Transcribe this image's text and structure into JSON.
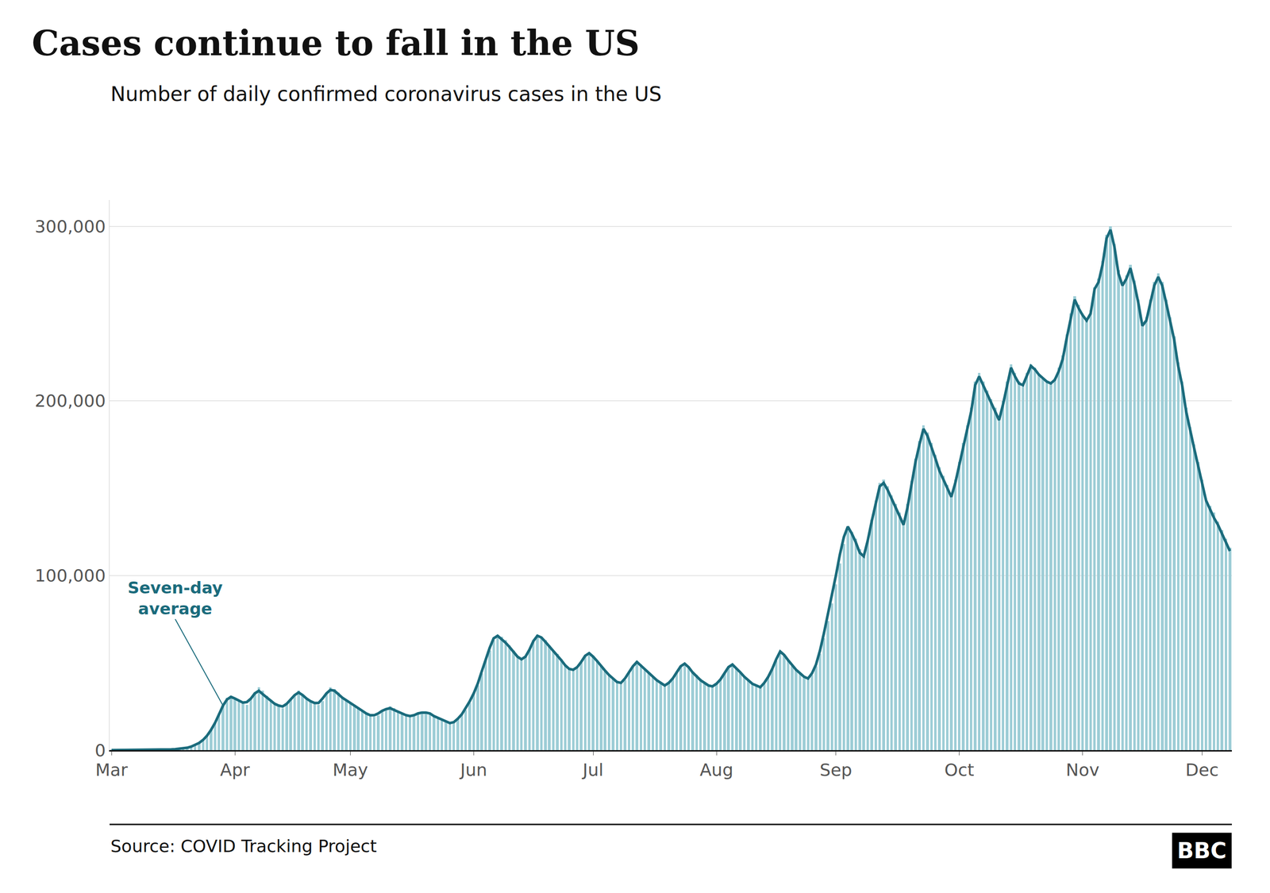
{
  "chart_data": {
    "type": "bar",
    "title": "Cases continue to fall in the US",
    "subtitle": "Number of daily confirmed coronavirus cases in the US",
    "source": "Source: COVID Tracking Project",
    "logo": "BBC",
    "annotations": [
      "Seven-day\naverage"
    ],
    "grid": true,
    "ylim": [
      0,
      315000
    ],
    "yticks": [
      0,
      {
        "value": 100000,
        "label": "100,000"
      },
      {
        "value": 200000,
        "label": "200,000"
      },
      {
        "value": 300000,
        "label": "300,000"
      }
    ],
    "categories": [
      "Mar",
      null,
      null,
      null,
      null,
      null,
      null,
      null,
      null,
      null,
      null,
      null,
      null,
      null,
      null,
      null,
      null,
      null,
      null,
      null,
      null,
      null,
      null,
      null,
      null,
      null,
      null,
      null,
      null,
      null,
      null,
      "Apr",
      null,
      null,
      null,
      null,
      null,
      null,
      null,
      null,
      null,
      null,
      null,
      null,
      null,
      null,
      null,
      null,
      null,
      null,
      null,
      null,
      null,
      null,
      null,
      null,
      null,
      null,
      null,
      null,
      "May",
      null,
      null,
      null,
      null,
      null,
      null,
      null,
      null,
      null,
      null,
      null,
      null,
      null,
      null,
      null,
      null,
      null,
      null,
      null,
      null,
      null,
      null,
      null,
      null,
      null,
      null,
      null,
      null,
      null,
      null,
      "Jun",
      null,
      null,
      null,
      null,
      null,
      null,
      null,
      null,
      null,
      null,
      null,
      null,
      null,
      null,
      null,
      null,
      null,
      null,
      null,
      null,
      null,
      null,
      null,
      null,
      null,
      null,
      null,
      null,
      null,
      "Jul",
      null,
      null,
      null,
      null,
      null,
      null,
      null,
      null,
      null,
      null,
      null,
      null,
      null,
      null,
      null,
      null,
      null,
      null,
      null,
      null,
      null,
      null,
      null,
      null,
      null,
      null,
      null,
      null,
      null,
      null,
      "Aug",
      null,
      null,
      null,
      null,
      null,
      null,
      null,
      null,
      null,
      null,
      null,
      null,
      null,
      null,
      null,
      null,
      null,
      null,
      null,
      null,
      null,
      null,
      null,
      null,
      null,
      null,
      null,
      null,
      null,
      "Sep",
      null,
      null,
      null,
      null,
      null,
      null,
      null,
      null,
      null,
      null,
      null,
      null,
      null,
      null,
      null,
      null,
      null,
      null,
      null,
      null,
      null,
      null,
      null,
      null,
      null,
      null,
      null,
      null,
      null,
      null,
      "Oct",
      null,
      null,
      null,
      null,
      null,
      null,
      null,
      null,
      null,
      null,
      null,
      null,
      null,
      null,
      null,
      null,
      null,
      null,
      null,
      null,
      null,
      null,
      null,
      null,
      null,
      null,
      null,
      null,
      null,
      null,
      "Nov",
      null,
      null,
      null,
      null,
      null,
      null,
      null,
      null,
      null,
      null,
      null,
      null,
      null,
      null,
      null,
      null,
      null,
      null,
      null,
      null,
      null,
      null,
      null,
      null,
      null,
      null,
      null,
      null,
      null,
      "Dec",
      null,
      null,
      null,
      null,
      null,
      null,
      null
    ],
    "series": [
      {
        "type": "bar",
        "color": "#9dcdd6",
        "values": [
          4,
          6,
          7,
          9,
          12,
          16,
          22,
          31,
          43,
          59,
          80,
          110,
          160,
          220,
          310,
          430,
          580,
          780,
          1000,
          1400,
          2100,
          3000,
          4300,
          6100,
          8600,
          12000,
          16000,
          21000,
          26000,
          30000,
          31000,
          29000,
          28000,
          27000,
          26000,
          29000,
          33000,
          36000,
          34000,
          31000,
          29000,
          27000,
          25000,
          24000,
          26000,
          29000,
          32000,
          34000,
          32000,
          30000,
          28000,
          27000,
          26000,
          28000,
          33000,
          36000,
          35000,
          33000,
          30000,
          28000,
          27000,
          25000,
          24000,
          22000,
          21000,
          20000,
          19000,
          20000,
          22000,
          24000,
          25000,
          24000,
          22000,
          21000,
          20000,
          19000,
          20000,
          21000,
          22000,
          22000,
          21000,
          19000,
          18000,
          17000,
          16000,
          15000,
          16000,
          18000,
          20000,
          23000,
          27000,
          32000,
          37000,
          44000,
          51000,
          57000,
          63000,
          66000,
          65000,
          63000,
          60000,
          57000,
          54000,
          52000,
          54000,
          58000,
          63000,
          66000,
          65000,
          63000,
          60000,
          57000,
          55000,
          52000,
          49000,
          47000,
          46000,
          47000,
          50000,
          54000,
          56000,
          54000,
          51000,
          48000,
          45000,
          43000,
          41000,
          39000,
          38000,
          40000,
          44000,
          48000,
          51000,
          49000,
          46000,
          44000,
          42000,
          40000,
          38000,
          37000,
          39000,
          41000,
          45000,
          48000,
          50000,
          48000,
          45000,
          43000,
          41000,
          38000,
          37000,
          36000,
          38000,
          40000,
          44000,
          47000,
          49000,
          47000,
          44000,
          42000,
          40000,
          38000,
          37000,
          36000,
          38000,
          42000,
          46000,
          51000,
          56000,
          54000,
          51000,
          48000,
          46000,
          44000,
          42000,
          41000,
          43000,
          48000,
          55000,
          64000,
          74000,
          84000,
          95000,
          107000,
          118000,
          128000,
          125000,
          121000,
          115000,
          111000,
          120000,
          132000,
          143000,
          153000,
          155000,
          151000,
          146000,
          141000,
          136000,
          131000,
          141000,
          154000,
          167000,
          177000,
          186000,
          182000,
          176000,
          169000,
          162000,
          157000,
          152000,
          147000,
          155000,
          165000,
          176000,
          186000,
          196000,
          211000,
          216000,
          211000,
          206000,
          201000,
          196000,
          191000,
          200000,
          211000,
          221000,
          216000,
          211000,
          209000,
          216000,
          221000,
          219000,
          215000,
          213000,
          211000,
          210000,
          213000,
          219000,
          226000,
          238000,
          250000,
          260000,
          255000,
          250000,
          247000,
          252000,
          265000,
          270000,
          280000,
          295000,
          300000,
          290000,
          275000,
          268000,
          272000,
          278000,
          269000,
          258000,
          245000,
          248000,
          258000,
          268000,
          273000,
          268000,
          258000,
          248000,
          237000,
          222000,
          211000,
          196000,
          185000,
          175000,
          165000,
          155000,
          144000,
          140000,
          136000,
          131000,
          126000,
          121000,
          116000
        ]
      },
      {
        "type": "line",
        "color": "#1a6b7c",
        "values": [
          4,
          5,
          6,
          8,
          11,
          15,
          21,
          29,
          40,
          56,
          76,
          105,
          152,
          210,
          296,
          415,
          560,
          750,
          960,
          1350,
          2000,
          2900,
          4100,
          5850,
          8300,
          11600,
          15600,
          20500,
          25500,
          29000,
          30500,
          29500,
          28200,
          27200,
          27500,
          29500,
          32500,
          34000,
          32000,
          30000,
          28500,
          26500,
          25500,
          25000,
          26500,
          29000,
          31500,
          33000,
          31500,
          29500,
          28000,
          27000,
          27000,
          29500,
          32500,
          34500,
          34000,
          32000,
          30000,
          28500,
          27000,
          25500,
          24000,
          22500,
          21000,
          20000,
          20000,
          21000,
          22500,
          23500,
          24000,
          23000,
          22000,
          21000,
          20000,
          19500,
          20000,
          21000,
          21500,
          21500,
          21000,
          19500,
          18500,
          17500,
          16500,
          15500,
          16000,
          18000,
          20500,
          24000,
          28000,
          32500,
          38000,
          45000,
          52000,
          58500,
          64000,
          65500,
          63500,
          61500,
          59000,
          56000,
          53500,
          52000,
          53500,
          57500,
          62500,
          65500,
          64500,
          62000,
          59500,
          57000,
          54000,
          51500,
          48500,
          46500,
          46000,
          47500,
          50500,
          54000,
          55500,
          53500,
          51000,
          48000,
          45500,
          43000,
          41000,
          39000,
          38500,
          41000,
          44500,
          48000,
          50500,
          48500,
          46000,
          44000,
          42000,
          40000,
          38500,
          37000,
          38500,
          41000,
          44500,
          48000,
          49500,
          47500,
          44500,
          42000,
          40000,
          38500,
          37000,
          36500,
          38000,
          40500,
          44000,
          47500,
          49000,
          47000,
          44500,
          42000,
          40000,
          38000,
          37000,
          36000,
          38500,
          42000,
          46500,
          52000,
          56500,
          54500,
          51500,
          48500,
          46000,
          44000,
          42000,
          41000,
          44000,
          49000,
          57000,
          67000,
          78000,
          88000,
          100000,
          112000,
          122000,
          128000,
          124000,
          119000,
          113000,
          111000,
          120000,
          131000,
          141000,
          151000,
          153000,
          149000,
          144000,
          139000,
          134000,
          129000,
          139000,
          152000,
          165000,
          175000,
          184000,
          180000,
          174000,
          167000,
          160000,
          155000,
          150000,
          145000,
          153000,
          163000,
          174000,
          184000,
          194000,
          209000,
          214000,
          209000,
          204000,
          199000,
          194000,
          189000,
          198000,
          209000,
          219000,
          214000,
          210000,
          209000,
          215000,
          220000,
          218000,
          215000,
          213000,
          211000,
          210000,
          212000,
          217000,
          224000,
          236000,
          248000,
          258000,
          253000,
          249000,
          246000,
          250000,
          264000,
          268000,
          278000,
          293000,
          298000,
          288000,
          273000,
          266000,
          270000,
          276000,
          267000,
          256000,
          243000,
          246000,
          256000,
          266000,
          271000,
          266000,
          256000,
          246000,
          235000,
          220000,
          209000,
          194000,
          183000,
          173000,
          163000,
          153000,
          143000,
          138000,
          133000,
          129000,
          124000,
          119000,
          114000
        ]
      }
    ]
  }
}
